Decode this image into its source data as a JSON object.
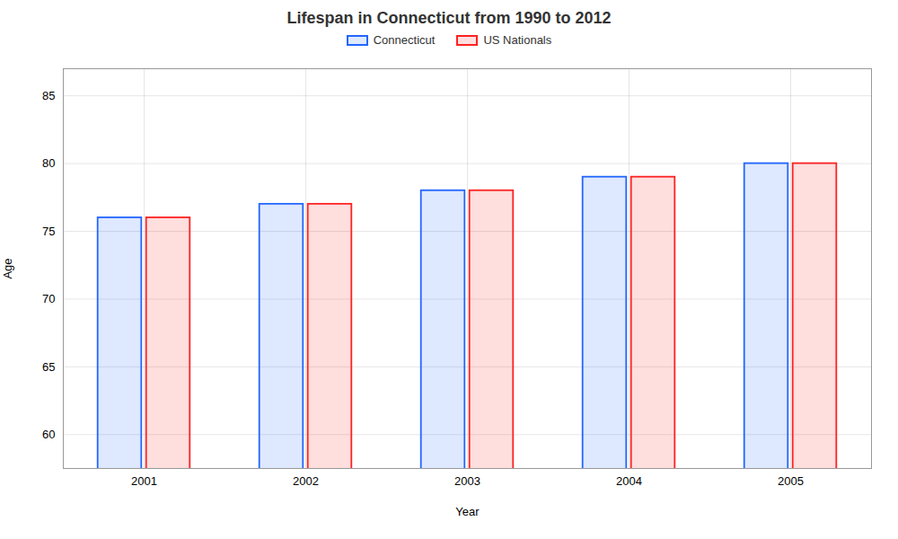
{
  "chart_data": {
    "type": "bar",
    "title": "Lifespan in Connecticut from 1990 to 2012",
    "xlabel": "Year",
    "ylabel": "Age",
    "categories": [
      "2001",
      "2002",
      "2003",
      "2004",
      "2005"
    ],
    "series": [
      {
        "name": "Connecticut",
        "color": "#2266ff",
        "values": [
          76,
          77,
          78,
          79,
          80
        ]
      },
      {
        "name": "US Nationals",
        "color": "#ff2222",
        "values": [
          76,
          77,
          78,
          79,
          80
        ]
      }
    ],
    "ylim": [
      57.5,
      87
    ],
    "yticks": [
      60,
      65,
      70,
      75,
      80,
      85
    ],
    "grid": true,
    "legend": "top"
  }
}
